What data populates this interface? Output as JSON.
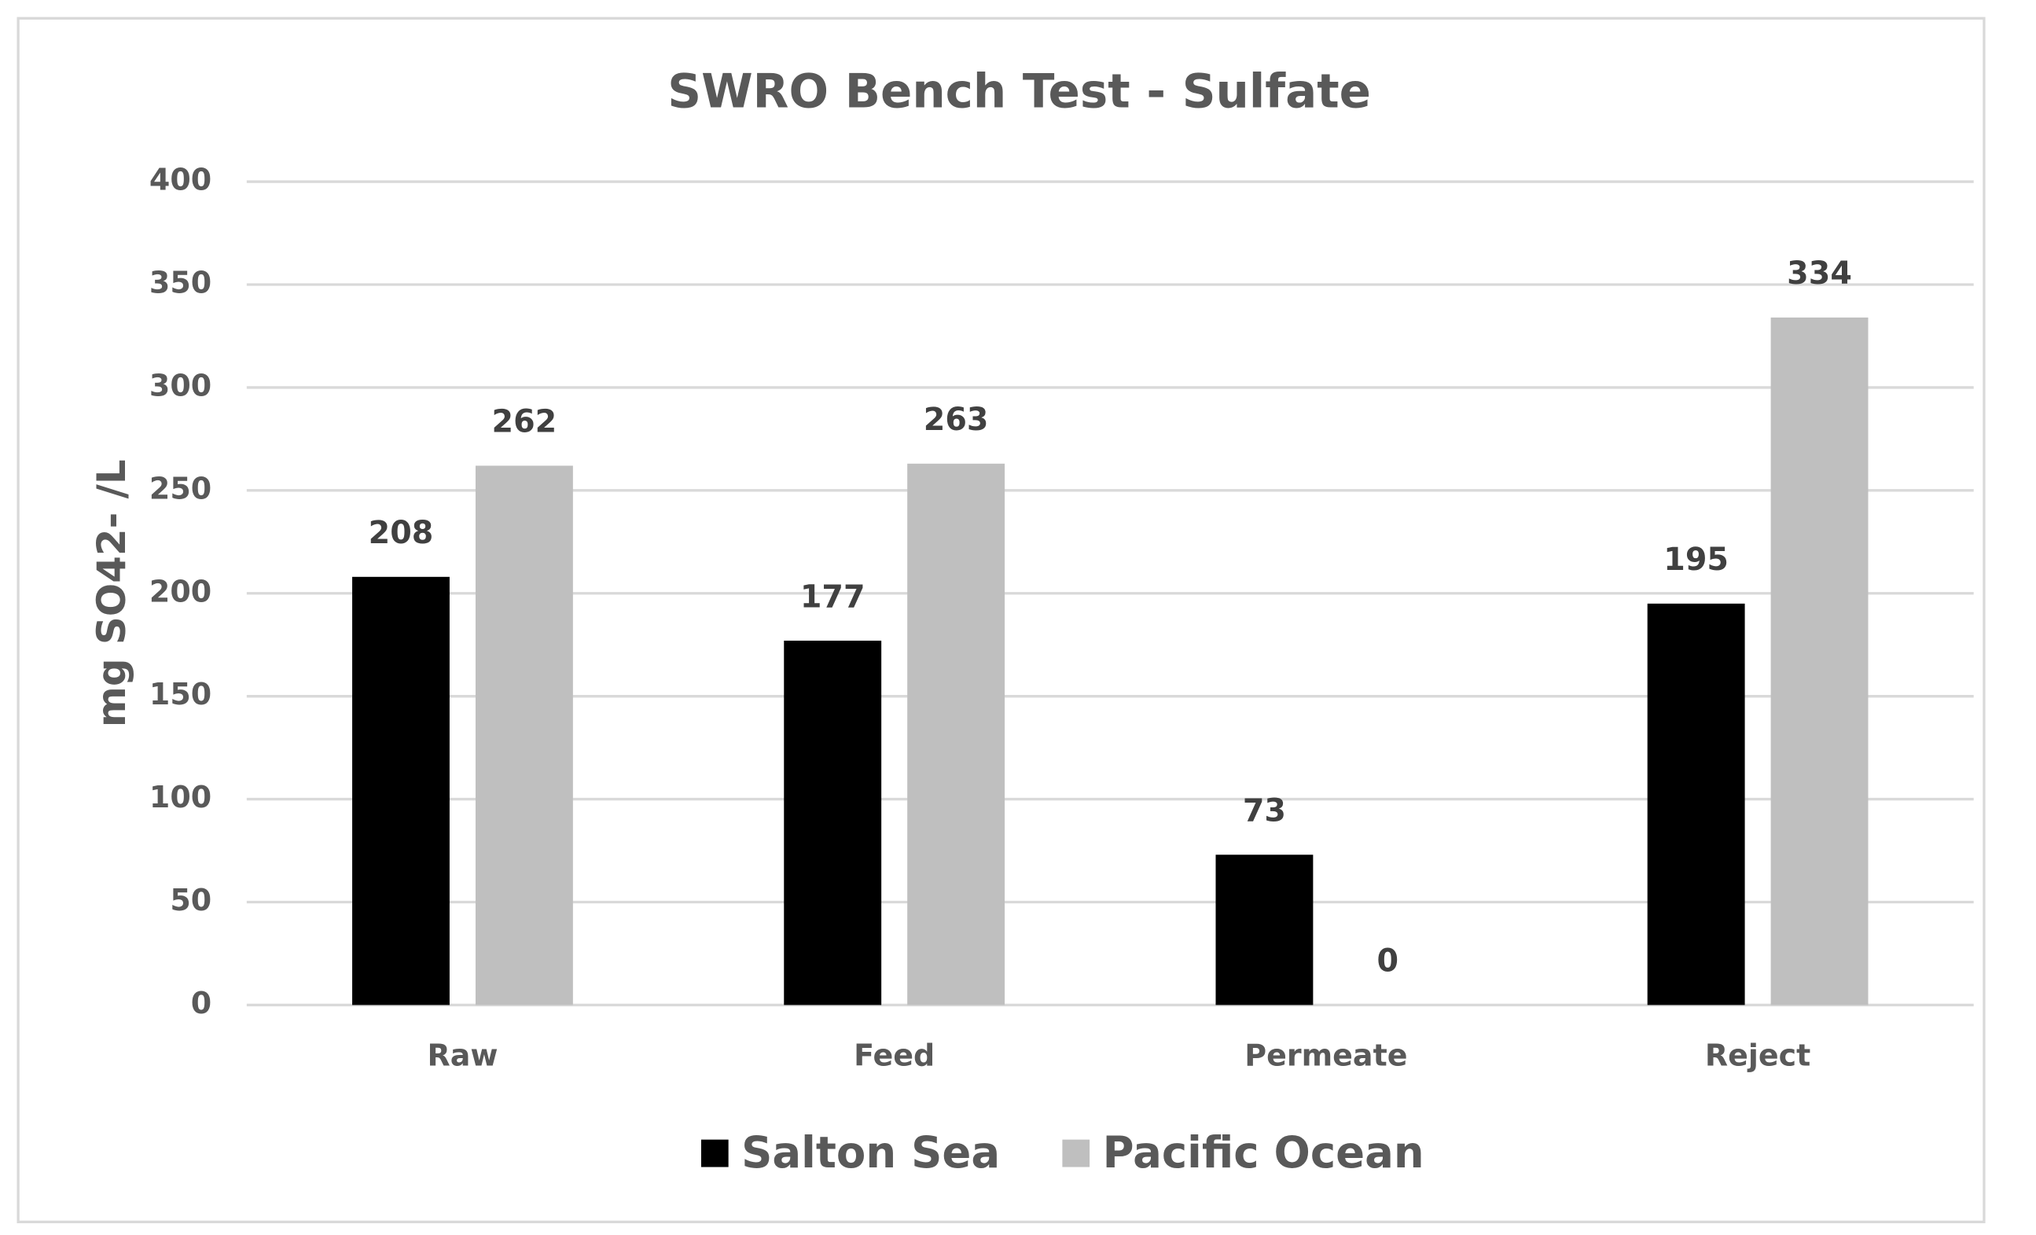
{
  "chart_data": {
    "type": "bar",
    "title": "SWRO Bench Test - Sulfate",
    "y_label": "mg SO42- /L",
    "categories": [
      "Raw",
      "Feed",
      "Permeate",
      "Reject"
    ],
    "series": [
      {
        "name": "Salton Sea",
        "color": "#000000",
        "values": [
          208,
          177,
          73,
          195
        ]
      },
      {
        "name": "Pacific Ocean",
        "color": "#bfbfbf",
        "values": [
          262,
          263,
          0,
          334
        ]
      }
    ],
    "ylim": [
      0,
      400
    ],
    "yticks": [
      0,
      50,
      100,
      150,
      200,
      250,
      300,
      350,
      400
    ],
    "grid": true,
    "legend": "bottom"
  }
}
